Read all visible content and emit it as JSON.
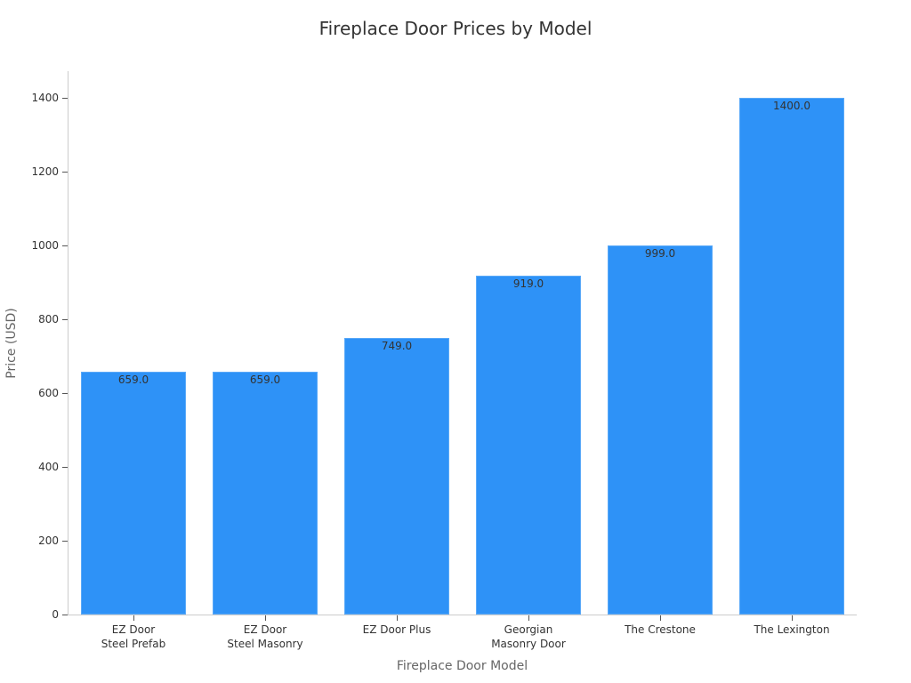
{
  "chart_data": {
    "type": "bar",
    "title": "Fireplace Door Prices by Model",
    "xlabel": "Fireplace Door Model",
    "ylabel": "Price (USD)",
    "categories": [
      "EZ Door\nSteel Prefab",
      "EZ Door\nSteel Masonry",
      "EZ Door Plus",
      "Georgian\nMasonry Door",
      "The Crestone",
      "The Lexington"
    ],
    "values": [
      659.0,
      659.0,
      749.0,
      919.0,
      999.0,
      1400.0
    ],
    "value_labels": [
      "659.0",
      "659.0",
      "749.0",
      "919.0",
      "999.0",
      "1400.0"
    ],
    "yticks": [
      0,
      200,
      400,
      600,
      800,
      1000,
      1200,
      1400
    ],
    "ylim": [
      0,
      1470
    ],
    "grid": false,
    "legend": null,
    "bar_color": "#2e92f7"
  }
}
